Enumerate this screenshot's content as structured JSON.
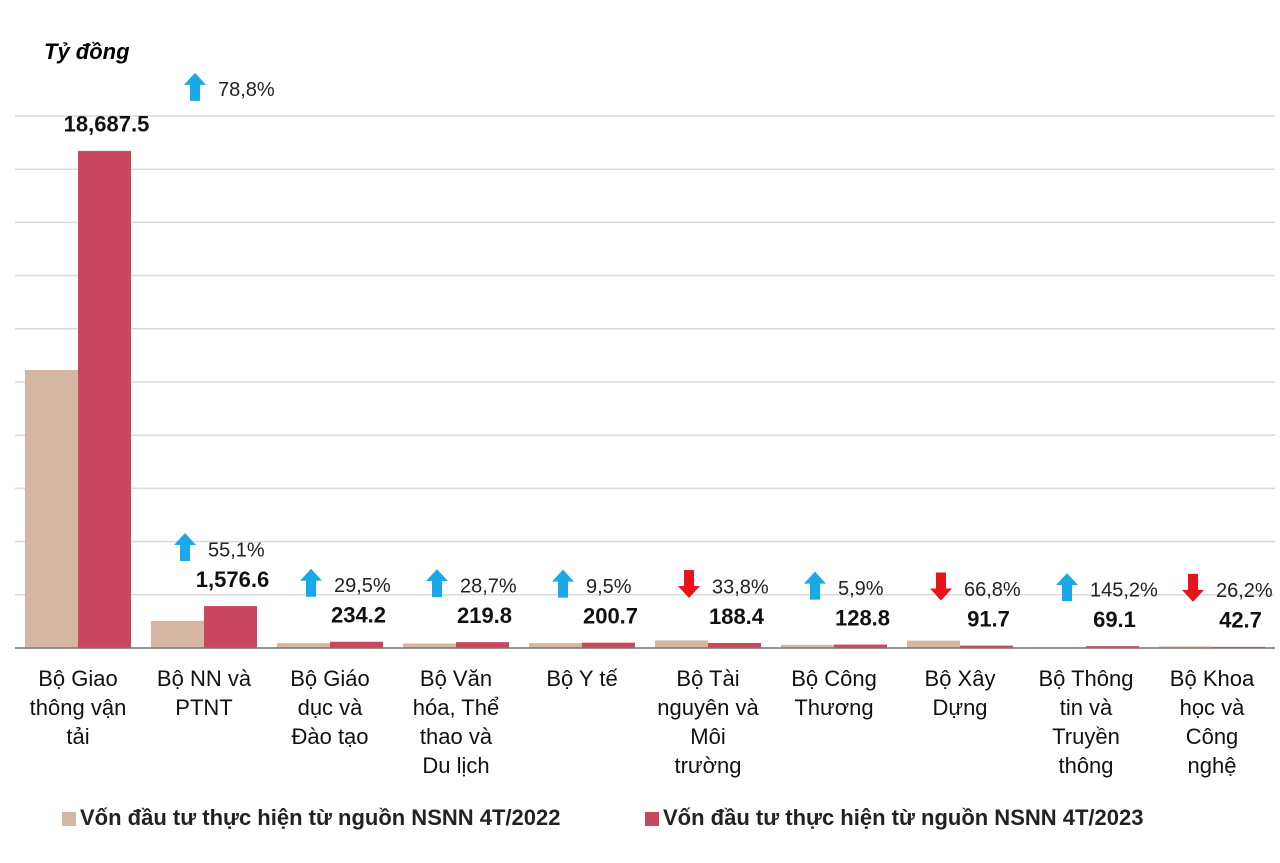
{
  "chart_data": {
    "type": "bar",
    "y_label": "Tỷ đồng",
    "categories": [
      "Bộ Giao thông vận tải",
      "Bộ NN và PTNT",
      "Bộ Giáo dục và Đào tạo",
      "Bộ Văn hóa, Thể thao và Du lịch",
      "Bộ Y tế",
      "Bộ Tài nguyên và Môi trường",
      "Bộ Công Thương",
      "Bộ Xây Dựng",
      "Bộ Thông tin và Truyền thông",
      "Bộ Khoa học và Công nghệ"
    ],
    "series": [
      {
        "name": "Vốn đầu tư thực hiện từ nguồn NSNN 4T/2022",
        "color": "#d4b6a2",
        "values": [
          10451,
          1016.5,
          180.8,
          170.8,
          183.3,
          284.6,
          121.6,
          276.2,
          28.2,
          57.9
        ]
      },
      {
        "name": "Vốn đầu tư thực hiện từ nguồn NSNN 4T/2023",
        "color": "#c9485f",
        "values": [
          18687.5,
          1576.6,
          234.2,
          219.8,
          200.7,
          188.4,
          128.8,
          91.7,
          69.1,
          42.7
        ],
        "value_labels": [
          "18,687.5",
          "1,576.6",
          "234.2",
          "219.8",
          "200.7",
          "188.4",
          "128.8",
          "91.7",
          "69.1",
          "42.7"
        ]
      }
    ],
    "change": {
      "values": [
        78.8,
        55.1,
        29.5,
        28.7,
        9.5,
        33.8,
        5.9,
        66.8,
        145.2,
        26.2
      ],
      "value_labels": [
        "78,8%",
        "55,1%",
        "29,5%",
        "28,7%",
        "9,5%",
        "33,8%",
        "5,9%",
        "66,8%",
        "145,2%",
        "26,2%"
      ],
      "directions": [
        "up",
        "up",
        "up",
        "up",
        "up",
        "down",
        "up",
        "down",
        "up",
        "down"
      ],
      "up_color": "#1aa9e6",
      "down_color": "#e8141c"
    },
    "ylim": [
      0,
      20000
    ],
    "yticks": [
      0,
      2000,
      4000,
      6000,
      8000,
      10000,
      12000,
      14000,
      16000,
      18000,
      20000
    ],
    "grid": true
  }
}
